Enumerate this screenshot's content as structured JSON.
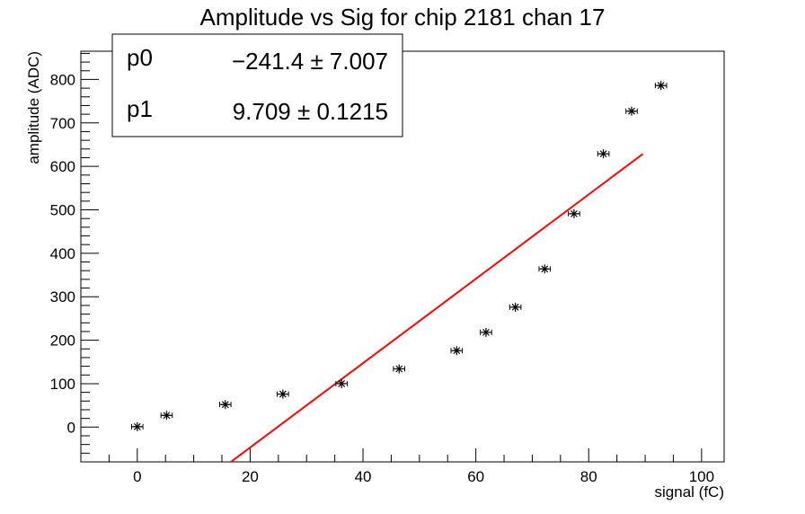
{
  "chart_data": {
    "type": "scatter",
    "title": "Amplitude vs Sig for chip 2181 chan 17",
    "xlabel": "signal (fC)",
    "ylabel": "amplitude (ADC)",
    "xlim": [
      -10,
      104
    ],
    "ylim": [
      -80,
      865
    ],
    "x_ticks": [
      0,
      20,
      40,
      60,
      80,
      100
    ],
    "y_ticks": [
      0,
      100,
      200,
      300,
      400,
      500,
      600,
      700,
      800
    ],
    "grid": false,
    "series": [
      {
        "marker": "star",
        "color": "#000000",
        "x_error": 1.0,
        "x": [
          0,
          5.2,
          15.6,
          25.8,
          36.2,
          46.4,
          56.6,
          61.8,
          67.0,
          72.2,
          77.4,
          82.6,
          87.6,
          92.8
        ],
        "y": [
          1,
          27,
          52,
          76,
          100,
          134,
          176,
          218,
          276,
          364,
          491,
          629,
          727,
          786
        ]
      }
    ],
    "fit": {
      "type": "linear",
      "color": "#ff0000",
      "p0": -241.4,
      "p1": 9.709,
      "x_start": 16.6,
      "x_end": 89.6
    },
    "stats_box": {
      "rows": [
        {
          "name": "p0",
          "value": "−241.4 ± 7.007"
        },
        {
          "name": "p1",
          "value": "9.709 ± 0.1215"
        }
      ]
    }
  }
}
